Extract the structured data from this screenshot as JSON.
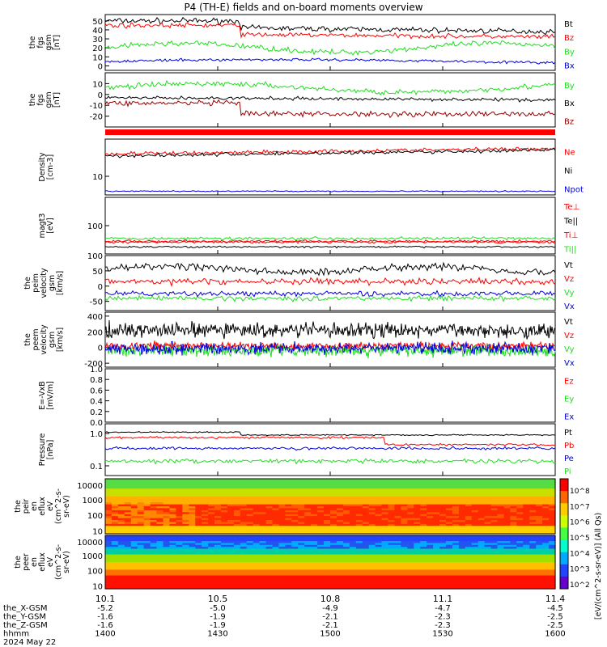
{
  "title": "P4 (TH-E) fields and on-board moments overview",
  "colors": {
    "black": "#000000",
    "red": "#ff0000",
    "green": "#22dd22",
    "blue": "#0000dd",
    "darkred": "#990000"
  },
  "chart_data": [
    {
      "type": "line",
      "ylabel": "the\nfgs\ngsm\n[nT]",
      "yticks": [
        "50",
        "40",
        "30",
        "20",
        "10",
        "0"
      ],
      "ylim": [
        -5,
        57
      ],
      "series": [
        {
          "name": "Bt",
          "color": "#000000"
        },
        {
          "name": "Bz",
          "color": "#ff0000"
        },
        {
          "name": "By",
          "color": "#22dd22"
        },
        {
          "name": "Bx",
          "color": "#0000dd"
        }
      ]
    },
    {
      "type": "line",
      "ylabel": "the\nfgs\ngsm\n[nT]",
      "yticks": [
        "10",
        "0",
        "-10",
        "-20"
      ],
      "ylim": [
        -30,
        20
      ],
      "series": [
        {
          "name": "By",
          "color": "#22dd22"
        },
        {
          "name": "Bx",
          "color": "#000000"
        },
        {
          "name": "Bz",
          "color": "#990000"
        }
      ]
    },
    {
      "type": "line",
      "ylabel": "Density\n[cm-3]",
      "yticks": [
        "10"
      ],
      "ylim": [
        0,
        30
      ],
      "series": [
        {
          "name": "Ne",
          "color": "#ff0000"
        },
        {
          "name": "Ni",
          "color": "#000000"
        },
        {
          "name": "Npot",
          "color": "#0000dd"
        }
      ]
    },
    {
      "type": "line",
      "ylabel": "magt3\n[eV]",
      "yticks": [
        "100"
      ],
      "ylim": [
        0,
        200
      ],
      "series": [
        {
          "name": "Te⊥",
          "color": "#ff0000"
        },
        {
          "name": "Te||",
          "color": "#000000"
        },
        {
          "name": "Ti⊥",
          "color": "#ff0000"
        },
        {
          "name": "Ti||",
          "color": "#22dd22"
        }
      ]
    },
    {
      "type": "line",
      "ylabel": "the\npeim\nvelocity\ngsm\n[km/s]",
      "yticks": [
        "100",
        "50",
        "0",
        "-50"
      ],
      "ylim": [
        -80,
        100
      ],
      "series": [
        {
          "name": "Vt",
          "color": "#000000"
        },
        {
          "name": "Vz",
          "color": "#ff0000"
        },
        {
          "name": "Vy",
          "color": "#22dd22"
        },
        {
          "name": "Vx",
          "color": "#0000dd"
        }
      ]
    },
    {
      "type": "line",
      "ylabel": "the\npeem\nvelocity\ngsm\n[km/s]",
      "yticks": [
        "400",
        "200",
        "0",
        "-200"
      ],
      "ylim": [
        -250,
        450
      ],
      "series": [
        {
          "name": "Vt",
          "color": "#000000"
        },
        {
          "name": "Vz",
          "color": "#ff0000"
        },
        {
          "name": "Vy",
          "color": "#22dd22"
        },
        {
          "name": "Vx",
          "color": "#0000dd"
        }
      ]
    },
    {
      "type": "line",
      "ylabel": "E=-VxB\n[mV/m]",
      "yticks": [
        "1.0",
        "0.8",
        "0.6",
        "0.4",
        "0.2",
        "0.0"
      ],
      "ylim": [
        0,
        1
      ],
      "series": [
        {
          "name": "Ez",
          "color": "#ff0000"
        },
        {
          "name": "Ey",
          "color": "#22dd22"
        },
        {
          "name": "Ex",
          "color": "#0000dd"
        }
      ]
    },
    {
      "type": "line",
      "ylabel": "Pressure\n[nPa]",
      "yticks": [
        "1.0",
        "0.1"
      ],
      "ylim": [
        0.05,
        2
      ],
      "yscale": "log",
      "series": [
        {
          "name": "Pt",
          "color": "#000000"
        },
        {
          "name": "Pb",
          "color": "#ff0000"
        },
        {
          "name": "Pe",
          "color": "#0000dd"
        },
        {
          "name": "Pi",
          "color": "#22dd22"
        }
      ]
    },
    {
      "type": "heatmap",
      "ylabel": "the\npeir\nen\neflux\neV\n(cm^2-s-\nsr-eV)",
      "yticks": [
        "10000",
        "1000",
        "100",
        "10"
      ],
      "yscale": "log"
    },
    {
      "type": "heatmap",
      "ylabel": "the\npeer\nen\neflux\neV\n(cm^2-s-\nsr-eV)",
      "yticks": [
        "10000",
        "1000",
        "100",
        "10"
      ],
      "yscale": "log"
    }
  ],
  "colorbar": {
    "label": "[eV/(cm^2-s-sr-eV)] (All Qs)",
    "ticks": [
      "10^8",
      "10^7",
      "10^6",
      "10^5",
      "10^4",
      "10^3",
      "10^2"
    ]
  },
  "xaxis": {
    "tick_values": [
      "10.1",
      "10.5",
      "10.8",
      "11.1",
      "11.4"
    ],
    "rows": [
      {
        "label": "the_X-GSM",
        "values": [
          "-5.2",
          "-5.0",
          "-4.9",
          "-4.7",
          "-4.5"
        ]
      },
      {
        "label": "the_Y-GSM",
        "values": [
          "-1.6",
          "-1.9",
          "-2.1",
          "-2.3",
          "-2.5"
        ]
      },
      {
        "label": "the_Z-GSM",
        "values": [
          "-1.6",
          "-1.9",
          "-2.1",
          "-2.3",
          "-2.5"
        ]
      },
      {
        "label": "hhmm",
        "values": [
          "1400",
          "1430",
          "1500",
          "1530",
          "1600"
        ]
      }
    ],
    "date": "2024 May 22"
  }
}
